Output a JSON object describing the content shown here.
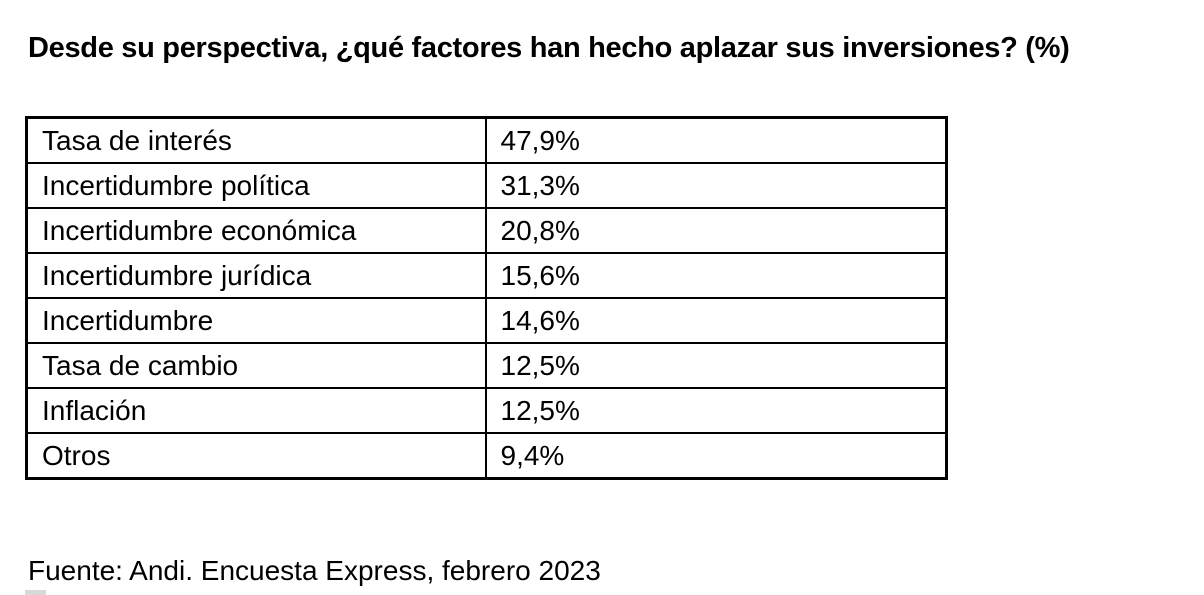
{
  "title": "Desde su perspectiva, ¿qué factores han hecho aplazar sus inversiones? (%)",
  "source": "Fuente: Andi. Encuesta Express, febrero 2023",
  "colors": {
    "background": "#ffffff",
    "text": "#000000",
    "table_border": "#000000",
    "artifact": "#d9d9d9"
  },
  "chart_data": {
    "type": "table",
    "title": "Desde su perspectiva, ¿qué factores han hecho aplazar sus inversiones? (%)",
    "unit": "%",
    "categories": [
      "Tasa de interés",
      "Incertidumbre política",
      "Incertidumbre económica",
      "Incertidumbre jurídica",
      "Incertidumbre",
      "Tasa de cambio",
      "Inflación",
      "Otros"
    ],
    "values": [
      47.9,
      31.3,
      20.8,
      15.6,
      14.6,
      12.5,
      12.5,
      9.4
    ],
    "rows": [
      {
        "factor": "Tasa de interés",
        "value": "47,9%"
      },
      {
        "factor": "Incertidumbre política",
        "value": "31,3%"
      },
      {
        "factor": "Incertidumbre económica",
        "value": "20,8%"
      },
      {
        "factor": "Incertidumbre jurídica",
        "value": "15,6%"
      },
      {
        "factor": "Incertidumbre",
        "value": "14,6%"
      },
      {
        "factor": "Tasa de cambio",
        "value": "12,5%"
      },
      {
        "factor": "Inflación",
        "value": "12,5%"
      },
      {
        "factor": "Otros",
        "value": "9,4%"
      }
    ],
    "source": "Fuente: Andi. Encuesta Express, febrero 2023",
    "layout": {
      "grid": true,
      "legend": "none"
    }
  }
}
